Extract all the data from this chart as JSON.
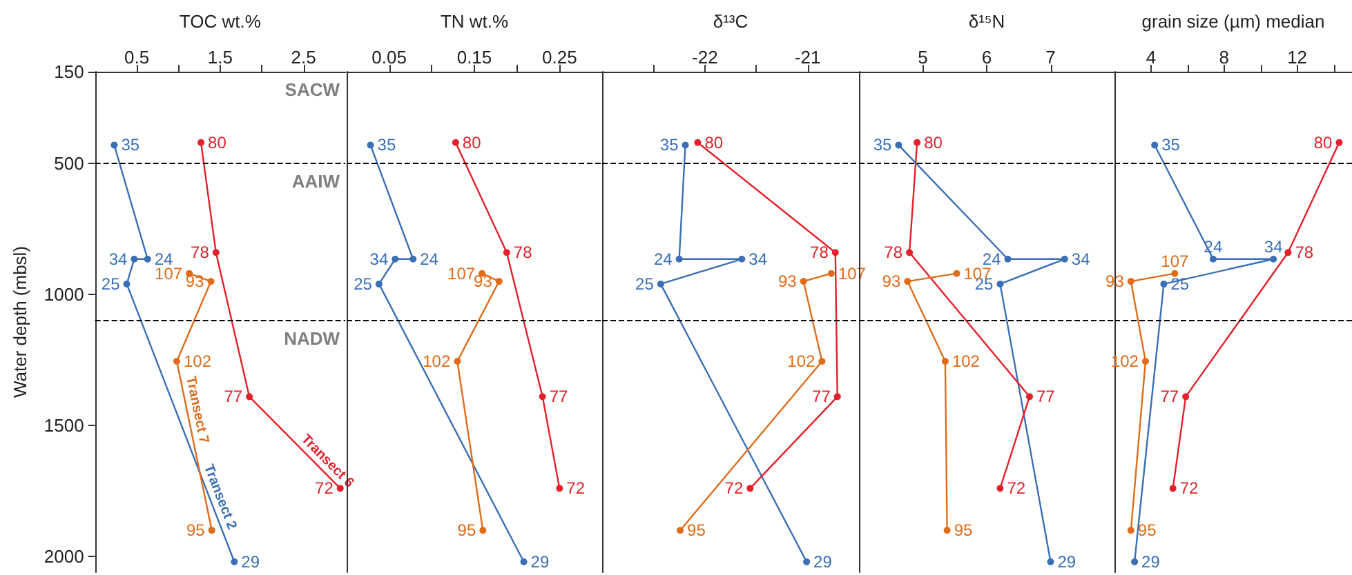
{
  "chart_data": [
    {
      "type": "line",
      "xlabel": "TOC wt.%",
      "ylabel": "Water depth (mbsl)",
      "xlim": [
        0,
        3
      ],
      "xticks": [
        0.5,
        {
          "value": 1,
          "label": null
        },
        1.5,
        {
          "value": 2,
          "label": null
        },
        2.5
      ],
      "ylim": [
        2060,
        150
      ],
      "yticks": [
        150,
        500,
        1000,
        1500,
        2000
      ],
      "marker": "circle",
      "line_style": "solid",
      "grid": false,
      "legend": false,
      "ref_lines": [
        {
          "axis": "y",
          "value": 500,
          "line_style": "dashed"
        },
        {
          "axis": "y",
          "value": 1100,
          "line_style": "dashed"
        }
      ],
      "annotations": [
        "SACW",
        "AAIW",
        "NADW",
        {
          "text": "35",
          "x": 0.23,
          "y": 430
        },
        {
          "text": "24",
          "x": 0.63,
          "y": 865
        },
        {
          "text": "34",
          "x": 0.47,
          "y": 865
        },
        {
          "text": "25",
          "x": 0.38,
          "y": 960
        },
        {
          "text": "29",
          "x": 1.67,
          "y": 2020
        },
        {
          "text": "80",
          "x": 1.27,
          "y": 420
        },
        {
          "text": "78",
          "x": 1.45,
          "y": 840
        },
        {
          "text": "77",
          "x": 1.85,
          "y": 1390
        },
        {
          "text": "72",
          "x": 2.94,
          "y": 1740
        },
        {
          "text": "107",
          "x": 1.13,
          "y": 920
        },
        {
          "text": "93",
          "x": 1.39,
          "y": 950
        },
        {
          "text": "102",
          "x": 0.98,
          "y": 1255
        },
        {
          "text": "95",
          "x": 1.4,
          "y": 1900
        }
      ],
      "series": [
        {
          "name": "Transect 2",
          "color": "#3a6fb5",
          "x": [
            0.23,
            0.63,
            0.47,
            0.38,
            1.67
          ],
          "values": [
            430,
            865,
            865,
            960,
            2020
          ]
        },
        {
          "name": "Transect 6",
          "color": "#e4202a",
          "x": [
            1.27,
            1.45,
            1.85,
            2.94
          ],
          "values": [
            420,
            840,
            1390,
            1740
          ]
        },
        {
          "name": "Transect 7",
          "color": "#e06c1a",
          "x": [
            1.13,
            1.39,
            0.98,
            1.4
          ],
          "values": [
            920,
            950,
            1255,
            1900
          ]
        }
      ]
    },
    {
      "type": "line",
      "xlabel": "TN wt.%",
      "xlim": [
        0,
        0.3
      ],
      "xticks": [
        0.05,
        {
          "value": 0.1,
          "label": null
        },
        0.15,
        {
          "value": 0.2,
          "label": null
        },
        0.25
      ],
      "ylim": [
        2060,
        150
      ],
      "tick_labels": "x",
      "marker": "circle",
      "line_style": "solid",
      "grid": false,
      "legend": false,
      "ref_lines": [
        {
          "axis": "y",
          "value": 500,
          "line_style": "dashed"
        },
        {
          "axis": "y",
          "value": 1100,
          "line_style": "dashed"
        }
      ],
      "annotations": [
        {
          "text": "35",
          "x": 0.028,
          "y": 430
        },
        {
          "text": "24",
          "x": 0.078,
          "y": 865
        },
        {
          "text": "34",
          "x": 0.057,
          "y": 865
        },
        {
          "text": "25",
          "x": 0.038,
          "y": 960
        },
        {
          "text": "29",
          "x": 0.208,
          "y": 2020
        },
        {
          "text": "80",
          "x": 0.128,
          "y": 420
        },
        {
          "text": "78",
          "x": 0.188,
          "y": 840
        },
        {
          "text": "77",
          "x": 0.23,
          "y": 1390
        },
        {
          "text": "72",
          "x": 0.25,
          "y": 1740
        },
        {
          "text": "107",
          "x": 0.159,
          "y": 920
        },
        {
          "text": "93",
          "x": 0.179,
          "y": 950
        },
        {
          "text": "102",
          "x": 0.13,
          "y": 1255
        },
        {
          "text": "95",
          "x": 0.16,
          "y": 1900
        }
      ],
      "series": [
        {
          "color": "#3a6fb5",
          "x": [
            0.028,
            0.078,
            0.057,
            0.038,
            0.208
          ],
          "values": [
            430,
            865,
            865,
            960,
            2020
          ]
        },
        {
          "color": "#e4202a",
          "x": [
            0.128,
            0.188,
            0.23,
            0.25
          ],
          "values": [
            420,
            840,
            1390,
            1740
          ]
        },
        {
          "color": "#e06c1a",
          "x": [
            0.159,
            0.179,
            0.13,
            0.16
          ],
          "values": [
            920,
            950,
            1255,
            1900
          ]
        }
      ]
    },
    {
      "type": "line",
      "xlabel": "δ¹³C",
      "xlim": [
        -23,
        -20.5
      ],
      "xticks": [
        {
          "value": -22.5,
          "label": null
        },
        -22,
        {
          "value": -21.5,
          "label": null
        },
        -21
      ],
      "ylim": [
        2060,
        150
      ],
      "tick_labels": "x",
      "marker": "circle",
      "line_style": "solid",
      "grid": false,
      "legend": false,
      "ref_lines": [
        {
          "axis": "y",
          "value": 500,
          "line_style": "dashed"
        },
        {
          "axis": "y",
          "value": 1100,
          "line_style": "dashed"
        }
      ],
      "annotations": [
        {
          "text": "35",
          "x": -22.19,
          "y": 430
        },
        {
          "text": "24",
          "x": -22.25,
          "y": 865
        },
        {
          "text": "34",
          "x": -21.64,
          "y": 865
        },
        {
          "text": "25",
          "x": -22.43,
          "y": 960
        },
        {
          "text": "29",
          "x": -21.01,
          "y": 2020
        },
        {
          "text": "80",
          "x": -22.07,
          "y": 420
        },
        {
          "text": "78",
          "x": -20.73,
          "y": 840
        },
        {
          "text": "77",
          "x": -20.71,
          "y": 1390
        },
        {
          "text": "72",
          "x": -21.56,
          "y": 1740
        },
        {
          "text": "107",
          "x": -20.77,
          "y": 920
        },
        {
          "text": "93",
          "x": -21.04,
          "y": 950
        },
        {
          "text": "102",
          "x": -20.86,
          "y": 1255
        },
        {
          "text": "95",
          "x": -22.24,
          "y": 1900
        }
      ],
      "series": [
        {
          "color": "#3a6fb5",
          "x": [
            -22.19,
            -22.25,
            -21.64,
            -22.43,
            -21.01
          ],
          "values": [
            430,
            865,
            865,
            960,
            2020
          ]
        },
        {
          "color": "#e4202a",
          "x": [
            -22.07,
            -20.73,
            -20.71,
            -21.56
          ],
          "values": [
            420,
            840,
            1390,
            1740
          ]
        },
        {
          "color": "#e06c1a",
          "x": [
            -20.77,
            -21.04,
            -20.86,
            -22.24
          ],
          "values": [
            920,
            950,
            1255,
            1900
          ]
        }
      ]
    },
    {
      "type": "line",
      "xlabel": "δ¹⁵N",
      "xlim": [
        4,
        8
      ],
      "xticks": [
        5,
        6,
        7
      ],
      "ylim": [
        2060,
        150
      ],
      "tick_labels": "x",
      "marker": "circle",
      "line_style": "solid",
      "grid": false,
      "legend": false,
      "ref_lines": [
        {
          "axis": "y",
          "value": 500,
          "line_style": "dashed"
        },
        {
          "axis": "y",
          "value": 1100,
          "line_style": "dashed"
        }
      ],
      "annotations": [
        {
          "text": "35",
          "x": 4.62,
          "y": 430
        },
        {
          "text": "24",
          "x": 6.33,
          "y": 865
        },
        {
          "text": "34",
          "x": 7.22,
          "y": 865
        },
        {
          "text": "25",
          "x": 6.21,
          "y": 960
        },
        {
          "text": "29",
          "x": 7.0,
          "y": 2020
        },
        {
          "text": "80",
          "x": 4.91,
          "y": 420
        },
        {
          "text": "78",
          "x": 4.79,
          "y": 840
        },
        {
          "text": "77",
          "x": 6.67,
          "y": 1390
        },
        {
          "text": "72",
          "x": 6.21,
          "y": 1740
        },
        {
          "text": "107",
          "x": 5.53,
          "y": 920
        },
        {
          "text": "93",
          "x": 4.76,
          "y": 950
        },
        {
          "text": "102",
          "x": 5.35,
          "y": 1255
        },
        {
          "text": "95",
          "x": 5.38,
          "y": 1900
        }
      ],
      "series": [
        {
          "color": "#3a6fb5",
          "x": [
            4.62,
            6.33,
            7.22,
            6.21,
            7.0
          ],
          "values": [
            430,
            865,
            865,
            960,
            2020
          ]
        },
        {
          "color": "#e4202a",
          "x": [
            4.91,
            4.79,
            6.67,
            6.21
          ],
          "values": [
            420,
            840,
            1390,
            1740
          ]
        },
        {
          "color": "#e06c1a",
          "x": [
            5.53,
            4.76,
            5.35,
            5.38
          ],
          "values": [
            920,
            950,
            1255,
            1900
          ]
        }
      ]
    },
    {
      "type": "line",
      "xlabel": "grain size (µm) median",
      "xlim": [
        2,
        15
      ],
      "xticks": [
        4,
        {
          "value": 6,
          "label": null
        },
        8,
        {
          "value": 10,
          "label": null
        },
        12,
        {
          "value": 14,
          "label": null
        }
      ],
      "ylim": [
        2060,
        150
      ],
      "tick_labels": "x",
      "marker": "circle",
      "line_style": "solid",
      "grid": false,
      "legend": false,
      "ref_lines": [
        {
          "axis": "y",
          "value": 500,
          "line_style": "dashed"
        },
        {
          "axis": "y",
          "value": 1100,
          "line_style": "dashed"
        }
      ],
      "annotations": [
        {
          "text": "35",
          "x": 4.2,
          "y": 430
        },
        {
          "text": "24",
          "x": 7.4,
          "y": 865
        },
        {
          "text": "34",
          "x": 10.7,
          "y": 865
        },
        {
          "text": "25",
          "x": 4.7,
          "y": 960
        },
        {
          "text": "29",
          "x": 3.1,
          "y": 2020
        },
        {
          "text": "80",
          "x": 14.3,
          "y": 420
        },
        {
          "text": "78",
          "x": 11.5,
          "y": 840
        },
        {
          "text": "77",
          "x": 5.9,
          "y": 1390
        },
        {
          "text": "72",
          "x": 5.2,
          "y": 1740
        },
        {
          "text": "107",
          "x": 5.3,
          "y": 920
        },
        {
          "text": "93",
          "x": 2.9,
          "y": 950
        },
        {
          "text": "102",
          "x": 3.7,
          "y": 1255
        },
        {
          "text": "95",
          "x": 2.9,
          "y": 1900
        }
      ],
      "series": [
        {
          "color": "#3a6fb5",
          "x": [
            4.2,
            7.4,
            10.7,
            4.7,
            3.1
          ],
          "values": [
            430,
            865,
            865,
            960,
            2020
          ]
        },
        {
          "color": "#e4202a",
          "x": [
            14.3,
            11.5,
            5.9,
            5.2
          ],
          "values": [
            420,
            840,
            1390,
            1740
          ]
        },
        {
          "color": "#e06c1a",
          "x": [
            5.3,
            2.9,
            3.7,
            2.9
          ],
          "values": [
            920,
            950,
            1255,
            1900
          ]
        }
      ]
    }
  ]
}
